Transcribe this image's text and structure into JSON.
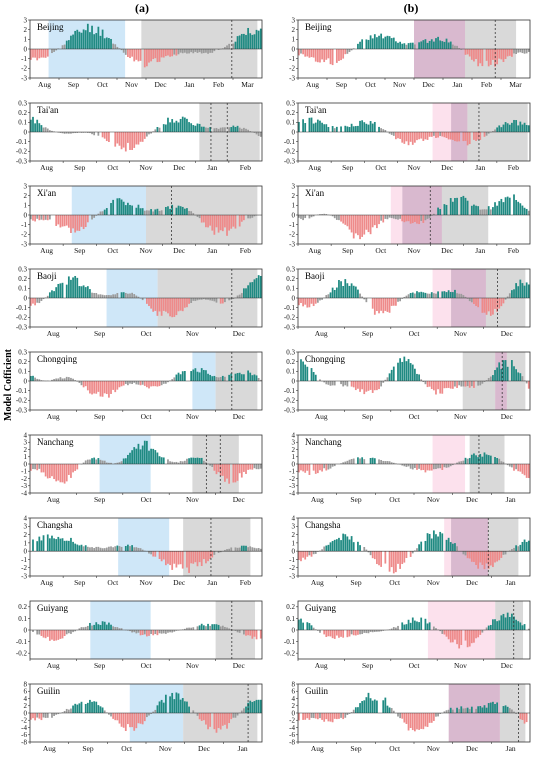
{
  "figure": {
    "ylabel": "Model Cofficient",
    "columns": [
      "(a)",
      "(b)"
    ]
  },
  "colors": {
    "positive": "#1f8a82",
    "negative": "#ee8a8a",
    "insignificant": "#9b9b9b",
    "blue_shade": "#cfe7f8",
    "pink_shade": "#fbdcea",
    "gray_shade": "#d9d9d9",
    "purple_overlap": "#d9b9cf"
  },
  "chart_data": [
    {
      "type": "bar",
      "col": "(a)",
      "city": "Beijing",
      "yticks": [
        "-3",
        "-2",
        "-1",
        "0",
        "1",
        "2",
        "3"
      ],
      "ylim": [
        -3,
        3
      ],
      "xticks": [
        "Aug",
        "Sep",
        "Oct",
        "Nov",
        "Dec",
        "Jan",
        "Feb",
        "Mar"
      ],
      "amp": 2.8,
      "seed": 11,
      "shades": [
        {
          "kind": "blue",
          "from": 0.08,
          "to": 0.41
        },
        {
          "kind": "gray",
          "from": 0.48,
          "to": 0.98
        }
      ],
      "dashed": [
        0.87
      ]
    },
    {
      "type": "bar",
      "col": "(b)",
      "city": "Beijing",
      "yticks": [
        "-3",
        "-2",
        "-1",
        "0",
        "1",
        "2",
        "3"
      ],
      "ylim": [
        -3,
        3
      ],
      "xticks": [
        "Aug",
        "Sep",
        "Oct",
        "Nov",
        "Dec",
        "Jan",
        "Feb",
        "Mar"
      ],
      "amp": 2.4,
      "seed": 12,
      "shades": [
        {
          "kind": "gray",
          "from": 0.5,
          "to": 0.94
        },
        {
          "kind": "pink",
          "from": 0.5,
          "to": 0.72
        }
      ],
      "dashed": [
        0.85
      ]
    },
    {
      "type": "bar",
      "col": "(a)",
      "city": "Tai'an",
      "yticks": [
        "-0.3",
        "-0.2",
        "-0.1",
        "0",
        "0.1",
        "0.2",
        "0.3"
      ],
      "ylim": [
        -0.3,
        0.3
      ],
      "xticks": [
        "Aug",
        "Sep",
        "Oct",
        "Nov",
        "Dec",
        "Jan",
        "Feb"
      ],
      "amp": 0.23,
      "seed": 21,
      "shades": [
        {
          "kind": "gray",
          "from": 0.73,
          "to": 0.99
        }
      ],
      "dashed": [
        0.78,
        0.85
      ]
    },
    {
      "type": "bar",
      "col": "(b)",
      "city": "Tai'an",
      "yticks": [
        "-0.3",
        "-0.2",
        "-0.1",
        "0",
        "0.1",
        "0.2",
        "0.3"
      ],
      "ylim": [
        -0.3,
        0.3
      ],
      "xticks": [
        "Aug",
        "Sep",
        "Oct",
        "Nov",
        "Dec",
        "Jan",
        "Feb"
      ],
      "amp": 0.2,
      "seed": 22,
      "shades": [
        {
          "kind": "gray",
          "from": 0.66,
          "to": 0.99
        },
        {
          "kind": "pink",
          "from": 0.58,
          "to": 0.73
        }
      ],
      "dashed": [
        0.78
      ]
    },
    {
      "type": "bar",
      "col": "(a)",
      "city": "Xi'an",
      "yticks": [
        "-3",
        "-2",
        "-1",
        "0",
        "1",
        "2",
        "3"
      ],
      "ylim": [
        -3,
        3
      ],
      "xticks": [
        "Aug",
        "Sep",
        "Oct",
        "Nov",
        "Dec",
        "Jan",
        "Feb"
      ],
      "amp": 2.4,
      "seed": 31,
      "shades": [
        {
          "kind": "blue",
          "from": 0.18,
          "to": 0.5
        },
        {
          "kind": "gray",
          "from": 0.5,
          "to": 0.98
        }
      ],
      "dashed": [
        0.61
      ]
    },
    {
      "type": "bar",
      "col": "(b)",
      "city": "Xi'an",
      "yticks": [
        "-3",
        "-2",
        "-1",
        "0",
        "1",
        "2",
        "3"
      ],
      "ylim": [
        -3,
        3
      ],
      "xticks": [
        "Aug",
        "Sep",
        "Oct",
        "Nov",
        "Dec",
        "Jan",
        "Feb"
      ],
      "amp": 2.8,
      "seed": 32,
      "shades": [
        {
          "kind": "pink",
          "from": 0.4,
          "to": 0.62
        },
        {
          "kind": "gray",
          "from": 0.45,
          "to": 0.82
        }
      ],
      "dashed": [
        0.57
      ]
    },
    {
      "type": "bar",
      "col": "(a)",
      "city": "Baoji",
      "yticks": [
        "-0.3",
        "-0.2",
        "-0.1",
        "0",
        "0.1",
        "0.2",
        "0.3"
      ],
      "ylim": [
        -0.3,
        0.3
      ],
      "xticks": [
        "Aug",
        "Sep",
        "Oct",
        "Nov",
        "Dec"
      ],
      "amp": 0.25,
      "seed": 41,
      "shades": [
        {
          "kind": "blue",
          "from": 0.33,
          "to": 0.55
        },
        {
          "kind": "gray",
          "from": 0.55,
          "to": 0.98
        }
      ],
      "dashed": [
        0.87
      ]
    },
    {
      "type": "bar",
      "col": "(b)",
      "city": "Baoji",
      "yticks": [
        "-0.3",
        "-0.2",
        "-0.1",
        "0",
        "0.1",
        "0.2",
        "0.3"
      ],
      "ylim": [
        -0.3,
        0.3
      ],
      "xticks": [
        "Aug",
        "Sep",
        "Oct",
        "Nov",
        "Dec"
      ],
      "amp": 0.23,
      "seed": 42,
      "shades": [
        {
          "kind": "pink",
          "from": 0.58,
          "to": 0.81
        },
        {
          "kind": "gray",
          "from": 0.66,
          "to": 0.98
        }
      ],
      "dashed": [
        0.86
      ]
    },
    {
      "type": "bar",
      "col": "(a)",
      "city": "Chongqing",
      "yticks": [
        "-0.3",
        "-0.2",
        "-0.1",
        "0",
        "0.1",
        "0.2",
        "0.3"
      ],
      "ylim": [
        -0.3,
        0.3
      ],
      "xticks": [
        "Aug",
        "Sep",
        "Oct",
        "Nov",
        "Dec"
      ],
      "amp": 0.2,
      "seed": 51,
      "shades": [
        {
          "kind": "blue",
          "from": 0.7,
          "to": 0.8
        },
        {
          "kind": "gray",
          "from": 0.8,
          "to": 0.98
        }
      ],
      "dashed": [
        0.87
      ]
    },
    {
      "type": "bar",
      "col": "(b)",
      "city": "Chongqing",
      "yticks": [
        "-0.3",
        "-0.2",
        "-0.1",
        "0",
        "0.1",
        "0.2",
        "0.3"
      ],
      "ylim": [
        -0.3,
        0.3
      ],
      "xticks": [
        "Aug",
        "Sep",
        "Oct",
        "Nov",
        "Dec"
      ],
      "amp": 0.26,
      "seed": 52,
      "shades": [
        {
          "kind": "gray",
          "from": 0.71,
          "to": 0.98
        },
        {
          "kind": "pink",
          "from": 0.85,
          "to": 0.9
        }
      ],
      "dashed": [
        0.88
      ]
    },
    {
      "type": "bar",
      "col": "(a)",
      "city": "Nanchang",
      "yticks": [
        "-4",
        "-3",
        "-2",
        "-1",
        "0",
        "1",
        "2",
        "3",
        "4"
      ],
      "ylim": [
        -4,
        4
      ],
      "xticks": [
        "Aug",
        "Sep",
        "Oct",
        "Nov",
        "Dec"
      ],
      "amp": 3.3,
      "seed": 61,
      "shades": [
        {
          "kind": "blue",
          "from": 0.3,
          "to": 0.52
        },
        {
          "kind": "gray",
          "from": 0.7,
          "to": 0.9
        }
      ],
      "dashed": [
        0.76,
        0.82
      ]
    },
    {
      "type": "bar",
      "col": "(b)",
      "city": "Nanchang",
      "yticks": [
        "-4",
        "-3",
        "-2",
        "-1",
        "0",
        "1",
        "2",
        "3",
        "4"
      ],
      "ylim": [
        -4,
        4
      ],
      "xticks": [
        "Aug",
        "Sep",
        "Oct",
        "Nov",
        "Dec",
        "Jan"
      ],
      "amp": 3.5,
      "seed": 62,
      "shades": [
        {
          "kind": "pink",
          "from": 0.58,
          "to": 0.72
        },
        {
          "kind": "gray",
          "from": 0.74,
          "to": 0.89
        }
      ],
      "dashed": [
        0.78
      ]
    },
    {
      "type": "bar",
      "col": "(a)",
      "city": "Changsha",
      "yticks": [
        "-3",
        "-2",
        "-1",
        "0",
        "1",
        "2",
        "3",
        "4"
      ],
      "ylim": [
        -3,
        4
      ],
      "xticks": [
        "Aug",
        "Sep",
        "Oct",
        "Nov",
        "Dec",
        "Jan",
        "Feb"
      ],
      "amp": 2.8,
      "seed": 71,
      "shades": [
        {
          "kind": "blue",
          "from": 0.38,
          "to": 0.6
        },
        {
          "kind": "gray",
          "from": 0.66,
          "to": 0.95
        }
      ],
      "dashed": [
        0.78
      ]
    },
    {
      "type": "bar",
      "col": "(b)",
      "city": "Changsha",
      "yticks": [
        "-3",
        "-2",
        "-1",
        "0",
        "1",
        "2",
        "3",
        "4"
      ],
      "ylim": [
        -3,
        4
      ],
      "xticks": [
        "Aug",
        "Sep",
        "Oct",
        "Nov",
        "Dec",
        "Jan"
      ],
      "amp": 2.9,
      "seed": 72,
      "shades": [
        {
          "kind": "pink",
          "from": 0.63,
          "to": 0.82
        },
        {
          "kind": "gray",
          "from": 0.66,
          "to": 0.95
        }
      ],
      "dashed": [
        0.82
      ]
    },
    {
      "type": "bar",
      "col": "(a)",
      "city": "Guiyang",
      "yticks": [
        "-0.2",
        "-0.1",
        "0",
        "0.1",
        "0.2"
      ],
      "ylim": [
        -0.25,
        0.25
      ],
      "xticks": [
        "Aug",
        "Sep",
        "Oct",
        "Nov",
        "Dec"
      ],
      "amp": 0.18,
      "seed": 81,
      "shades": [
        {
          "kind": "blue",
          "from": 0.26,
          "to": 0.52
        },
        {
          "kind": "gray",
          "from": 0.8,
          "to": 0.97
        }
      ],
      "dashed": [
        0.87
      ]
    },
    {
      "type": "bar",
      "col": "(b)",
      "city": "Guiyang",
      "yticks": [
        "-0.2",
        "-0.1",
        "0",
        "0.1",
        "0.2"
      ],
      "ylim": [
        -0.25,
        0.25
      ],
      "xticks": [
        "Aug",
        "Sep",
        "Oct",
        "Nov",
        "Dec"
      ],
      "amp": 0.17,
      "seed": 82,
      "shades": [
        {
          "kind": "pink",
          "from": 0.56,
          "to": 0.85
        },
        {
          "kind": "gray",
          "from": 0.85,
          "to": 0.97
        }
      ],
      "dashed": [
        0.93
      ]
    },
    {
      "type": "bar",
      "col": "(a)",
      "city": "Guilin",
      "yticks": [
        "-8",
        "-6",
        "-4",
        "-2",
        "0",
        "2",
        "4",
        "6",
        "8"
      ],
      "ylim": [
        -8,
        8
      ],
      "xticks": [
        "Aug",
        "Sep",
        "Oct",
        "Nov",
        "Dec",
        "Jan"
      ],
      "amp": 6.2,
      "seed": 91,
      "shades": [
        {
          "kind": "blue",
          "from": 0.43,
          "to": 0.66
        },
        {
          "kind": "gray",
          "from": 0.66,
          "to": 0.98
        }
      ],
      "dashed": [
        0.94
      ]
    },
    {
      "type": "bar",
      "col": "(b)",
      "city": "Guilin",
      "yticks": [
        "-8",
        "-6",
        "-4",
        "-2",
        "0",
        "2",
        "4",
        "6",
        "8"
      ],
      "ylim": [
        -8,
        8
      ],
      "xticks": [
        "Aug",
        "Sep",
        "Oct",
        "Nov",
        "Dec",
        "Jan"
      ],
      "amp": 6.5,
      "seed": 92,
      "shades": [
        {
          "kind": "gray",
          "from": 0.65,
          "to": 0.98
        },
        {
          "kind": "pink",
          "from": 0.65,
          "to": 0.87
        }
      ],
      "dashed": [
        0.95
      ]
    }
  ]
}
